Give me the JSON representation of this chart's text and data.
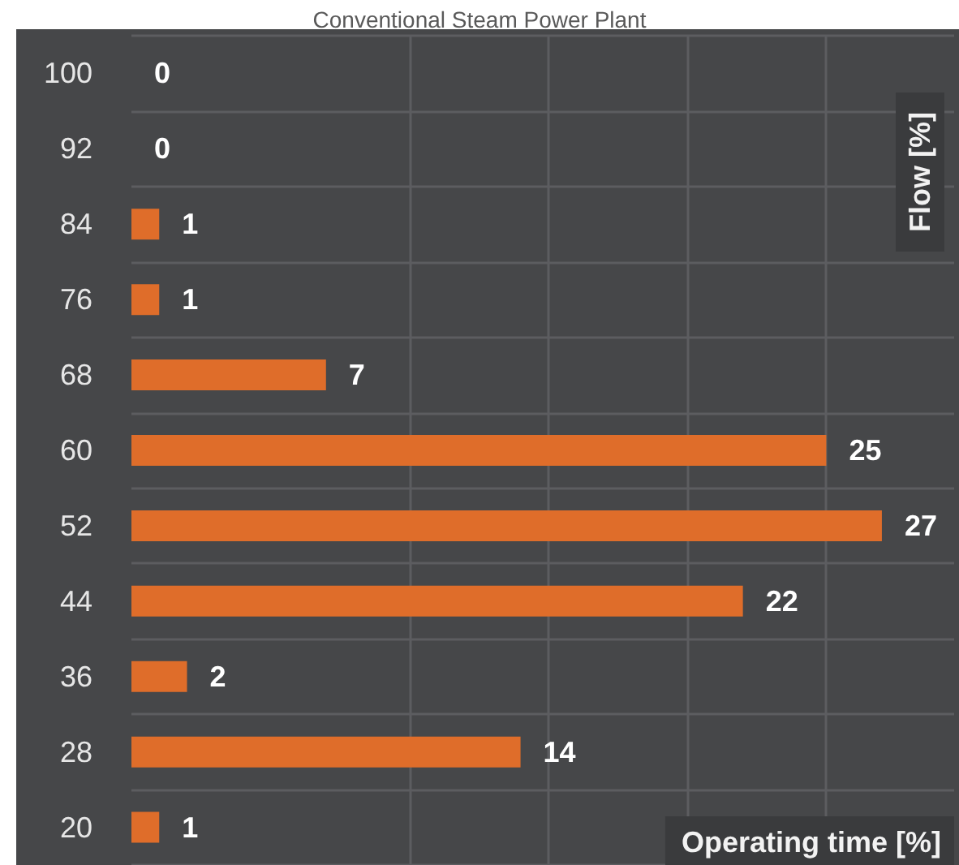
{
  "chart_data": {
    "type": "bar",
    "orientation": "horizontal",
    "title": "Conventional Steam Power Plant",
    "xlabel": "Operating time [%]",
    "ylabel": "Flow [%]",
    "categories": [
      "100",
      "92",
      "84",
      "76",
      "68",
      "60",
      "52",
      "44",
      "36",
      "28",
      "20"
    ],
    "values": [
      0,
      0,
      1,
      1,
      7,
      25,
      27,
      22,
      2,
      14,
      1
    ],
    "color": "#df6d2a",
    "data_labels": true,
    "xlim": [
      0,
      29.6
    ],
    "xticks": [
      {
        "value": 10,
        "label": null
      },
      {
        "value": 15,
        "label": null
      },
      {
        "value": 20,
        "label": null
      },
      {
        "value": 25,
        "label": null
      }
    ],
    "grid": true,
    "tick_labels": "y"
  }
}
